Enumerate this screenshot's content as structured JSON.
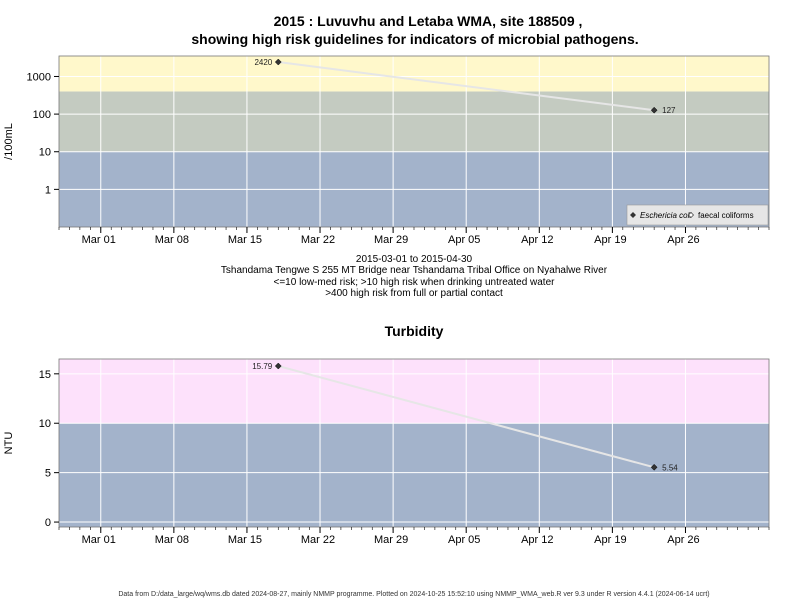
{
  "title_line1": "2015 : Luvuvhu and Letaba WMA, site 188509 ,",
  "title_line2": "showing high risk guidelines for indicators of microbial pathogens.",
  "caption": [
    "2015-03-01 to 2015-04-30",
    "Tshandama Tengwe S 255 MT Bridge near Tshandama Tribal Office on Nyahalwe River",
    "<=10 low-med risk; >10 high risk when drinking untreated water",
    ">400 high risk from full or partial contact"
  ],
  "footer": "Data from D:/data_large/wq/wms.db dated 2024-08-27, mainly NMMP programme. Plotted on 2024-10-25 15:52:10 using NMMP_WMA_web.R ver 9.3 under R version 4.4.1 (2024-06-14 ucrt)",
  "colors": {
    "band_blue": "#a3b3cb",
    "band_green": "#c4cbc1",
    "band_yellow": "#fff8cb",
    "band_pink": "#fde1fb",
    "line": "#e6e6e6",
    "point": "#333333",
    "grid": "#ffffff"
  },
  "chart_data": [
    {
      "type": "line",
      "title": "",
      "ylabel": "/100mL",
      "yscale": "log",
      "ylim": [
        0.1,
        3500
      ],
      "xlim": [
        "2015-02-25",
        "2015-05-04"
      ],
      "x_ticks": [
        {
          "date": "2015-03-01",
          "label": "Mar 01"
        },
        {
          "date": "2015-03-08",
          "label": "Mar 08"
        },
        {
          "date": "2015-03-15",
          "label": "Mar 15"
        },
        {
          "date": "2015-03-22",
          "label": "Mar 22"
        },
        {
          "date": "2015-03-29",
          "label": "Mar 29"
        },
        {
          "date": "2015-04-05",
          "label": "Apr 05"
        },
        {
          "date": "2015-04-12",
          "label": "Apr 12"
        },
        {
          "date": "2015-04-19",
          "label": "Apr 19"
        },
        {
          "date": "2015-04-26",
          "label": "Apr 26"
        }
      ],
      "y_ticks": [
        {
          "value": 1,
          "label": "1"
        },
        {
          "value": 10,
          "label": "10"
        },
        {
          "value": 100,
          "label": "100"
        },
        {
          "value": 1000,
          "label": "1000"
        }
      ],
      "bands": [
        {
          "from": 0.1,
          "to": 10,
          "color": "band_blue"
        },
        {
          "from": 10,
          "to": 400,
          "color": "band_green"
        },
        {
          "from": 400,
          "to": 3500,
          "color": "band_yellow"
        }
      ],
      "series": [
        {
          "name": "Eschericia coli",
          "marker": "filled-diamond",
          "points": [
            {
              "x": "2015-03-18",
              "y": 2420,
              "label": "2420"
            },
            {
              "x": "2015-04-23",
              "y": 127,
              "label": "127"
            }
          ]
        },
        {
          "name": "faecal coliforms",
          "marker": "open-diamond",
          "points": []
        }
      ],
      "grid": true,
      "legend": "bottom-right"
    },
    {
      "type": "line",
      "title": "Turbidity",
      "ylabel": "NTU",
      "yscale": "linear",
      "ylim": [
        -0.5,
        16.5
      ],
      "xlim": [
        "2015-02-25",
        "2015-05-04"
      ],
      "x_ticks": [
        {
          "date": "2015-03-01",
          "label": "Mar 01"
        },
        {
          "date": "2015-03-08",
          "label": "Mar 08"
        },
        {
          "date": "2015-03-15",
          "label": "Mar 15"
        },
        {
          "date": "2015-03-22",
          "label": "Mar 22"
        },
        {
          "date": "2015-03-29",
          "label": "Mar 29"
        },
        {
          "date": "2015-04-05",
          "label": "Apr 05"
        },
        {
          "date": "2015-04-12",
          "label": "Apr 12"
        },
        {
          "date": "2015-04-19",
          "label": "Apr 19"
        },
        {
          "date": "2015-04-26",
          "label": "Apr 26"
        }
      ],
      "y_ticks": [
        {
          "value": 0,
          "label": "0"
        },
        {
          "value": 5,
          "label": "5"
        },
        {
          "value": 10,
          "label": "10"
        },
        {
          "value": 15,
          "label": "15"
        }
      ],
      "bands": [
        {
          "from": -0.5,
          "to": 10,
          "color": "band_blue"
        },
        {
          "from": 10,
          "to": 16.5,
          "color": "band_pink"
        }
      ],
      "series": [
        {
          "marker": "filled-diamond",
          "points": [
            {
              "x": "2015-03-18",
              "y": 15.79,
              "label": "15.79"
            },
            {
              "x": "2015-04-23",
              "y": 5.54,
              "label": "5.54"
            }
          ]
        }
      ],
      "grid": true,
      "legend": "none"
    }
  ]
}
